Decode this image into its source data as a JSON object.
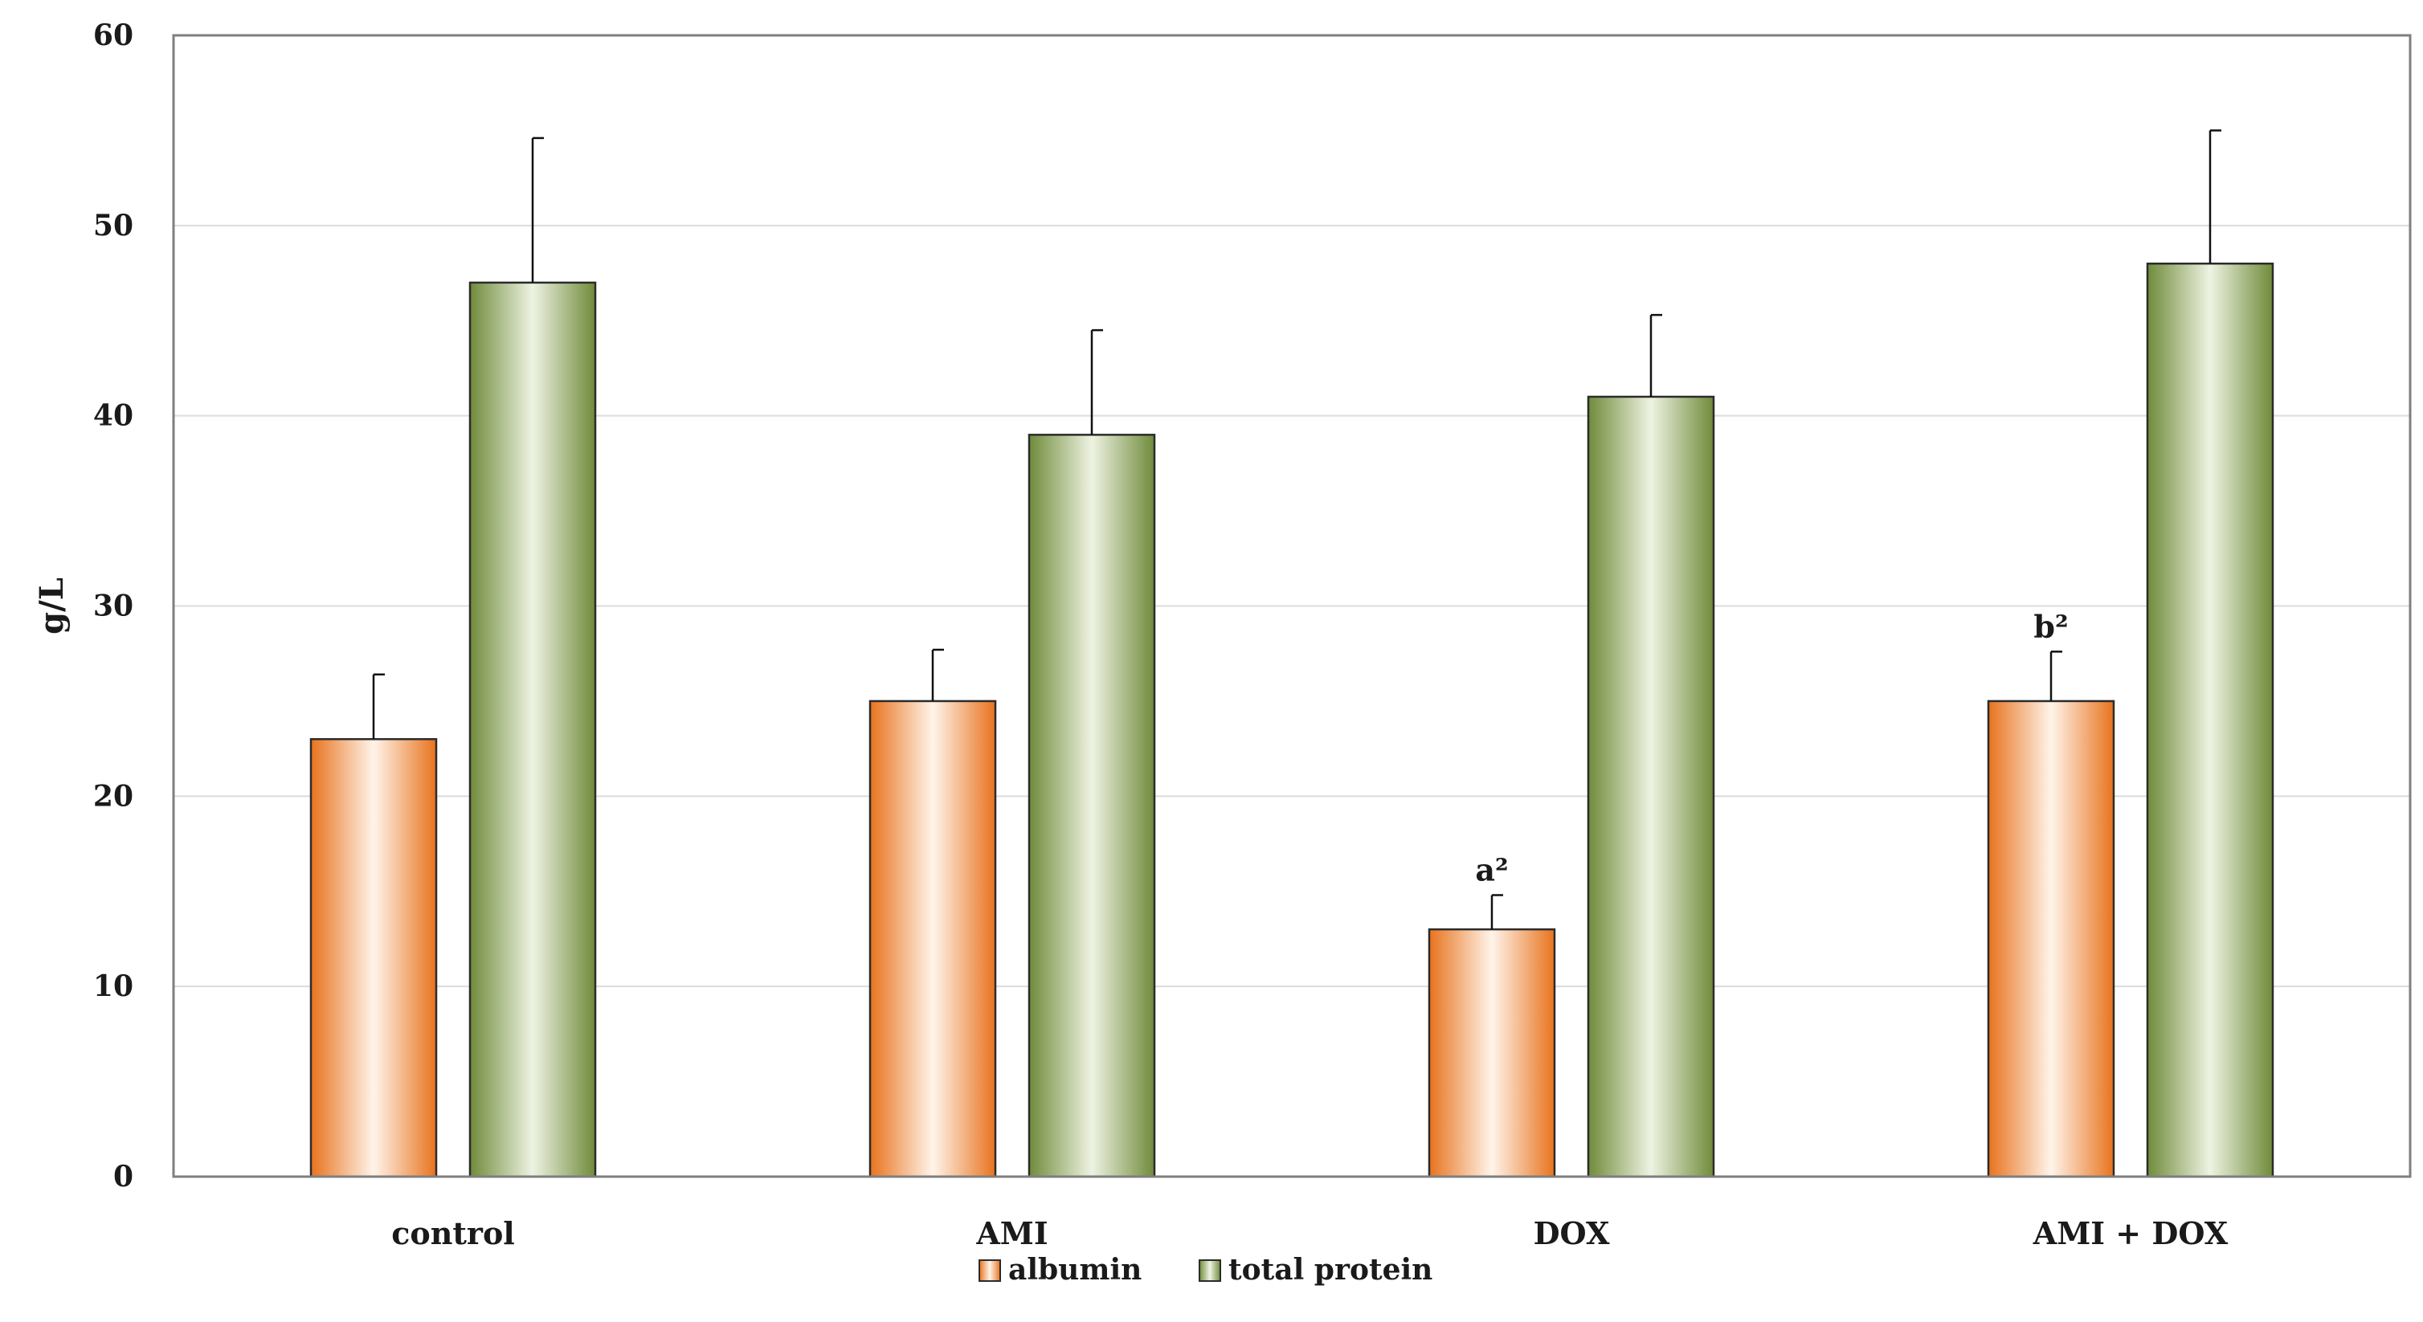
{
  "chart_data": {
    "type": "bar",
    "title": "",
    "xlabel": "",
    "ylabel": "g/L",
    "ylim": [
      0,
      60
    ],
    "yticks": [
      0,
      10,
      20,
      30,
      40,
      50,
      60
    ],
    "grid": true,
    "legend_position": "bottom-center",
    "categories": [
      "control",
      "AMI",
      "DOX",
      "AMI + DOX"
    ],
    "series": [
      {
        "name": "albumin",
        "color": "#e8731e",
        "values": [
          23,
          25,
          13,
          25
        ],
        "errors": [
          3.4,
          2.7,
          1.8,
          2.6
        ],
        "annotations": [
          "",
          "",
          "a²",
          "b²"
        ]
      },
      {
        "name": "total protein",
        "color": "#6f8b3a",
        "values": [
          47,
          39,
          41,
          48
        ],
        "errors": [
          7.6,
          5.5,
          4.3,
          7.0
        ],
        "annotations": [
          "",
          "",
          "",
          ""
        ]
      }
    ]
  }
}
